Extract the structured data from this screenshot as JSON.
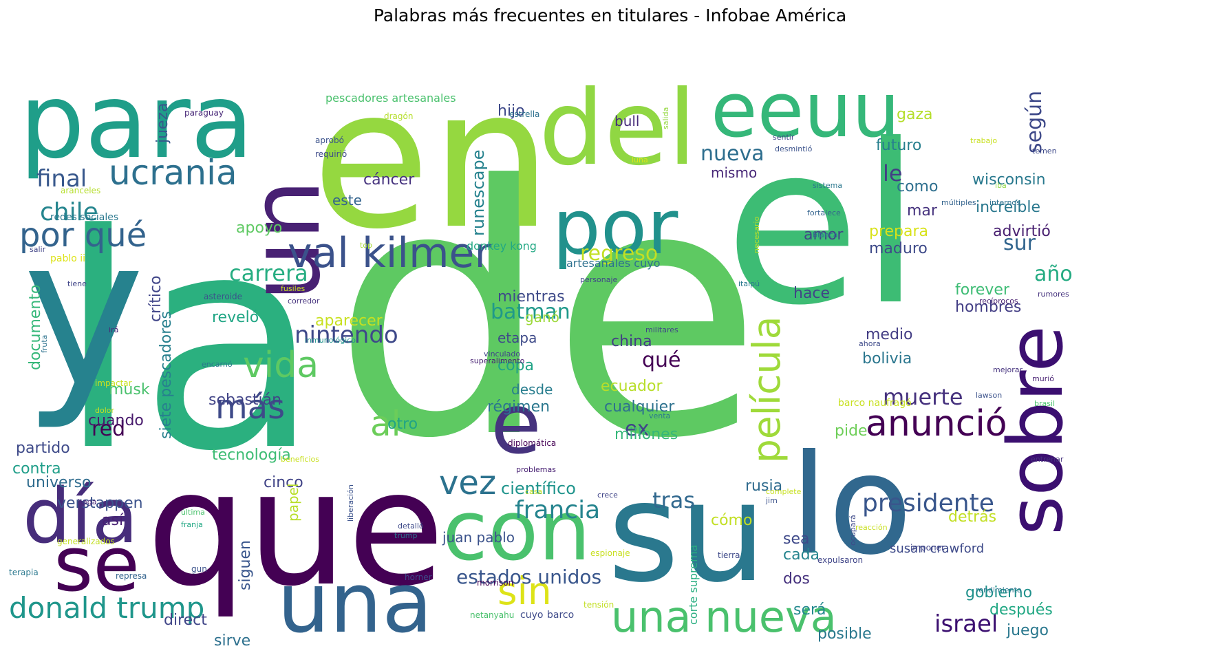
{
  "figure": {
    "title": "Palabras más frecuentes en titulares - Infobae América"
  },
  "words": [
    {
      "text": "la",
      "color": "#2bb07f"
    },
    {
      "text": "de",
      "color": "#5ec962"
    },
    {
      "text": "el",
      "color": "#3dbc74"
    },
    {
      "text": "en",
      "color": "#95d840"
    },
    {
      "text": "y",
      "color": "#26828e"
    },
    {
      "text": "que",
      "color": "#440154"
    },
    {
      "text": "para",
      "color": "#1f9e89"
    },
    {
      "text": "del",
      "color": "#90d743"
    },
    {
      "text": "eeuu",
      "color": "#35b779"
    },
    {
      "text": "un",
      "color": "#482173"
    },
    {
      "text": "lo",
      "color": "#31688e"
    },
    {
      "text": "su",
      "color": "#2a788e"
    },
    {
      "text": "una",
      "color": "#33638d"
    },
    {
      "text": "se",
      "color": "#440154"
    },
    {
      "text": "día",
      "color": "#472d7b"
    },
    {
      "text": "con",
      "color": "#4ac16d"
    },
    {
      "text": "sobre",
      "color": "#3b0f70"
    },
    {
      "text": "e",
      "color": "#46337e"
    },
    {
      "text": "por",
      "color": "#21918c"
    },
    {
      "text": "val kilmer",
      "color": "#3b528b"
    },
    {
      "text": "una nueva",
      "color": "#4ac16d"
    },
    {
      "text": "ucrania",
      "color": "#2d708e"
    },
    {
      "text": "por qué",
      "color": "#33638d"
    },
    {
      "text": "vida",
      "color": "#5ec962"
    },
    {
      "text": "película",
      "color": "#9fda3a"
    },
    {
      "text": "anunció",
      "color": "#440154"
    },
    {
      "text": "donald trump",
      "color": "#1f968b"
    },
    {
      "text": "sin",
      "color": "#dde318"
    },
    {
      "text": "vez",
      "color": "#2c728e"
    },
    {
      "text": "más",
      "color": "#3e4a89"
    },
    {
      "text": "al",
      "color": "#6ccd5a"
    },
    {
      "text": "final",
      "color": "#38588c"
    },
    {
      "text": "chile",
      "color": "#25858e"
    },
    {
      "text": "presidente",
      "color": "#39568c"
    },
    {
      "text": "francia",
      "color": "#25848e"
    },
    {
      "text": "israel",
      "color": "#3b0f70"
    },
    {
      "text": "nintendo",
      "color": "#3e4989"
    },
    {
      "text": "carrera",
      "color": "#26ad81"
    },
    {
      "text": "regreso",
      "color": "#c2df23"
    },
    {
      "text": "batman",
      "color": "#1f998a"
    },
    {
      "text": "muerte",
      "color": "#46327e"
    },
    {
      "text": "estados unidos",
      "color": "#39568c"
    },
    {
      "text": "nueva",
      "color": "#2e6e8e"
    },
    {
      "text": "tras",
      "color": "#31688e"
    },
    {
      "text": "red",
      "color": "#440154"
    },
    {
      "text": "qué",
      "color": "#440154"
    },
    {
      "text": "ex",
      "color": "#404688"
    },
    {
      "text": "según",
      "color": "#3e4989"
    },
    {
      "text": "año",
      "color": "#25ab82"
    },
    {
      "text": "sur",
      "color": "#32658e"
    },
    {
      "text": "le",
      "color": "#433e85"
    },
    {
      "text": "runescape",
      "color": "#26828e"
    },
    {
      "text": "científico",
      "color": "#1f948c"
    },
    {
      "text": "jueza",
      "color": "#38588c"
    },
    {
      "text": "siete pescadores",
      "color": "#27808e"
    },
    {
      "text": "documento",
      "color": "#35b779"
    },
    {
      "text": "apoyo",
      "color": "#5ec962"
    },
    {
      "text": "cáncer",
      "color": "#46337e"
    },
    {
      "text": "futuro",
      "color": "#277f8e"
    },
    {
      "text": "gaza",
      "color": "#b5de2b"
    },
    {
      "text": "wisconsin",
      "color": "#29798e"
    },
    {
      "text": "increíble",
      "color": "#2a788e"
    },
    {
      "text": "advirtió",
      "color": "#481f70"
    },
    {
      "text": "prepara",
      "color": "#d8e219"
    },
    {
      "text": "maduro",
      "color": "#3e4a89"
    },
    {
      "text": "amor",
      "color": "#414487"
    },
    {
      "text": "mar",
      "color": "#46337e"
    },
    {
      "text": "como",
      "color": "#2e6f8e"
    },
    {
      "text": "mismo",
      "color": "#482878"
    },
    {
      "text": "hijo",
      "color": "#3e4989"
    },
    {
      "text": "bull",
      "color": "#472c7a"
    },
    {
      "text": "este",
      "color": "#33638d"
    },
    {
      "text": "crítico",
      "color": "#404588"
    },
    {
      "text": "mientras",
      "color": "#3e4a89"
    },
    {
      "text": "reveló",
      "color": "#21a685"
    },
    {
      "text": "aparecer",
      "color": "#c8e020"
    },
    {
      "text": "ganó",
      "color": "#9dd93b"
    },
    {
      "text": "etapa",
      "color": "#3e4a89"
    },
    {
      "text": "copa",
      "color": "#20a386"
    },
    {
      "text": "desde",
      "color": "#287d8e"
    },
    {
      "text": "régimen",
      "color": "#2a778e"
    },
    {
      "text": "otro",
      "color": "#20a486"
    },
    {
      "text": "china",
      "color": "#433e85"
    },
    {
      "text": "ecuador",
      "color": "#b8de29"
    },
    {
      "text": "cualquier",
      "color": "#2d718e"
    },
    {
      "text": "millones",
      "color": "#35b779"
    },
    {
      "text": "hace",
      "color": "#414487"
    },
    {
      "text": "medio",
      "color": "#433d84"
    },
    {
      "text": "bolivia",
      "color": "#2a768e"
    },
    {
      "text": "forever",
      "color": "#3dbc74"
    },
    {
      "text": "hombres",
      "color": "#433e85"
    },
    {
      "text": "musk",
      "color": "#4ac16d"
    },
    {
      "text": "sebastián",
      "color": "#414487"
    },
    {
      "text": "cuando",
      "color": "#481a6c"
    },
    {
      "text": "partido",
      "color": "#3e4a89"
    },
    {
      "text": "tecnología",
      "color": "#3dbc74"
    },
    {
      "text": "contra",
      "color": "#1f9e89"
    },
    {
      "text": "universo",
      "color": "#2f6c8e"
    },
    {
      "text": "cinco",
      "color": "#414487"
    },
    {
      "text": "verstappen",
      "color": "#3b528b"
    },
    {
      "text": "así",
      "color": "#482173"
    },
    {
      "text": "direct",
      "color": "#404588"
    },
    {
      "text": "sirve",
      "color": "#2d708e"
    },
    {
      "text": "siguen",
      "color": "#39568c"
    },
    {
      "text": "papel",
      "color": "#b8de29"
    },
    {
      "text": "juan pablo",
      "color": "#3b528b"
    },
    {
      "text": "rusia",
      "color": "#2f6b8e"
    },
    {
      "text": "cómo",
      "color": "#c2df23"
    },
    {
      "text": "sea",
      "color": "#3e4989"
    },
    {
      "text": "cada",
      "color": "#25848e"
    },
    {
      "text": "dos",
      "color": "#46327e"
    },
    {
      "text": "será",
      "color": "#23898e"
    },
    {
      "text": "posible",
      "color": "#2a788e"
    },
    {
      "text": "pide",
      "color": "#6ece58"
    },
    {
      "text": "detrás",
      "color": "#c2df23"
    },
    {
      "text": "gobierno",
      "color": "#21918c"
    },
    {
      "text": "después",
      "color": "#22a884"
    },
    {
      "text": "juego",
      "color": "#2a788e"
    },
    {
      "text": "susan crawford",
      "color": "#3e4a89"
    },
    {
      "text": "corte suprema",
      "color": "#28ae80"
    },
    {
      "text": "pescadores artesanales",
      "color": "#4ac16d"
    },
    {
      "text": "artesanales cuyo",
      "color": "#2d708e"
    },
    {
      "text": "donkey kong",
      "color": "#22a884"
    },
    {
      "text": "paraguay",
      "color": "#482878"
    },
    {
      "text": "dragón",
      "color": "#b5de2b"
    },
    {
      "text": "aprobó",
      "color": "#3b528b"
    },
    {
      "text": "requirió",
      "color": "#3e4a89"
    },
    {
      "text": "estrella",
      "color": "#2d708e"
    },
    {
      "text": "salida",
      "color": "#95d840"
    },
    {
      "text": "sentir",
      "color": "#414487"
    },
    {
      "text": "desmintió",
      "color": "#3b528b"
    },
    {
      "text": "trabajo",
      "color": "#c8e020"
    },
    {
      "text": "temen",
      "color": "#3e4a89"
    },
    {
      "text": "luna",
      "color": "#dde318"
    },
    {
      "text": "sistema",
      "color": "#2a778e"
    },
    {
      "text": "iba",
      "color": "#90d743"
    },
    {
      "text": "múltiples",
      "color": "#33638d"
    },
    {
      "text": "internos",
      "color": "#2d708e"
    },
    {
      "text": "fortalece",
      "color": "#33638d"
    },
    {
      "text": "blanca",
      "color": "#2a788e"
    },
    {
      "text": "aranceles",
      "color": "#b5de2b"
    },
    {
      "text": "redes sociales",
      "color": "#2a788e"
    },
    {
      "text": "salir",
      "color": "#414487"
    },
    {
      "text": "pablo ii",
      "color": "#dde318"
    },
    {
      "text": "top",
      "color": "#a8db34"
    },
    {
      "text": "necesario",
      "color": "#b5de2b"
    },
    {
      "text": "personaje",
      "color": "#404588"
    },
    {
      "text": "itaipú",
      "color": "#2a788e"
    },
    {
      "text": "tiene",
      "color": "#404588"
    },
    {
      "text": "asteroide",
      "color": "#3b528b"
    },
    {
      "text": "fusiles",
      "color": "#c8e020"
    },
    {
      "text": "corredor",
      "color": "#46337e"
    },
    {
      "text": "militares",
      "color": "#404588"
    },
    {
      "text": "rumores",
      "color": "#46337e"
    },
    {
      "text": "recíprocos",
      "color": "#481f70"
    },
    {
      "text": "fruta",
      "color": "#2c728e"
    },
    {
      "text": "irá",
      "color": "#482878"
    },
    {
      "text": "inmunológico",
      "color": "#21918c"
    },
    {
      "text": "vinculado",
      "color": "#404588"
    },
    {
      "text": "superalimento",
      "color": "#482173"
    },
    {
      "text": "ahora",
      "color": "#3e4a89"
    },
    {
      "text": "encarnó",
      "color": "#2a778e"
    },
    {
      "text": "impactar",
      "color": "#c8e020"
    },
    {
      "text": "mejorar",
      "color": "#46337e"
    },
    {
      "text": "murió",
      "color": "#482173"
    },
    {
      "text": "venta",
      "color": "#2a788e"
    },
    {
      "text": "dolor",
      "color": "#c2df23"
    },
    {
      "text": "lawson",
      "color": "#3b528b"
    },
    {
      "text": "brasil",
      "color": "#4ac16d"
    },
    {
      "text": "barco naufragó",
      "color": "#c8e020"
    },
    {
      "text": "diplomática",
      "color": "#440154"
    },
    {
      "text": "beneficios",
      "color": "#c8e020"
    },
    {
      "text": "entrenar",
      "color": "#46337e"
    },
    {
      "text": "problemas",
      "color": "#482173"
    },
    {
      "text": "casa",
      "color": "#c2df23"
    },
    {
      "text": "liberación",
      "color": "#3b528b"
    },
    {
      "text": "crece",
      "color": "#404588"
    },
    {
      "text": "complete",
      "color": "#c8e020"
    },
    {
      "text": "jim",
      "color": "#3b528b"
    },
    {
      "text": "última",
      "color": "#4ac16d"
    },
    {
      "text": "haga",
      "color": "#482878"
    },
    {
      "text": "franja",
      "color": "#22a884"
    },
    {
      "text": "detalló",
      "color": "#3e4a89"
    },
    {
      "text": "trump",
      "color": "#2d708e"
    },
    {
      "text": "generalizados",
      "color": "#c2df23"
    },
    {
      "text": "reacción",
      "color": "#c8e020"
    },
    {
      "text": "ocupará",
      "color": "#3e4a89"
    },
    {
      "text": "imponer",
      "color": "#404588"
    },
    {
      "text": "espionaje",
      "color": "#c8e020"
    },
    {
      "text": "tierra",
      "color": "#3e4a89"
    },
    {
      "text": "expulsaron",
      "color": "#404588"
    },
    {
      "text": "terapia",
      "color": "#2a788e"
    },
    {
      "text": "represa",
      "color": "#33638d"
    },
    {
      "text": "gun",
      "color": "#3b528b"
    },
    {
      "text": "morrison",
      "color": "#440154"
    },
    {
      "text": "horner",
      "color": "#3e4a89"
    },
    {
      "text": "tensión",
      "color": "#c2df23"
    },
    {
      "text": "rendimiento",
      "color": "#2a788e"
    },
    {
      "text": "netanyahu",
      "color": "#4ac16d"
    },
    {
      "text": "cuyo",
      "color": "#3e4a89"
    },
    {
      "text": "barco",
      "color": "#3e4a89"
    }
  ]
}
